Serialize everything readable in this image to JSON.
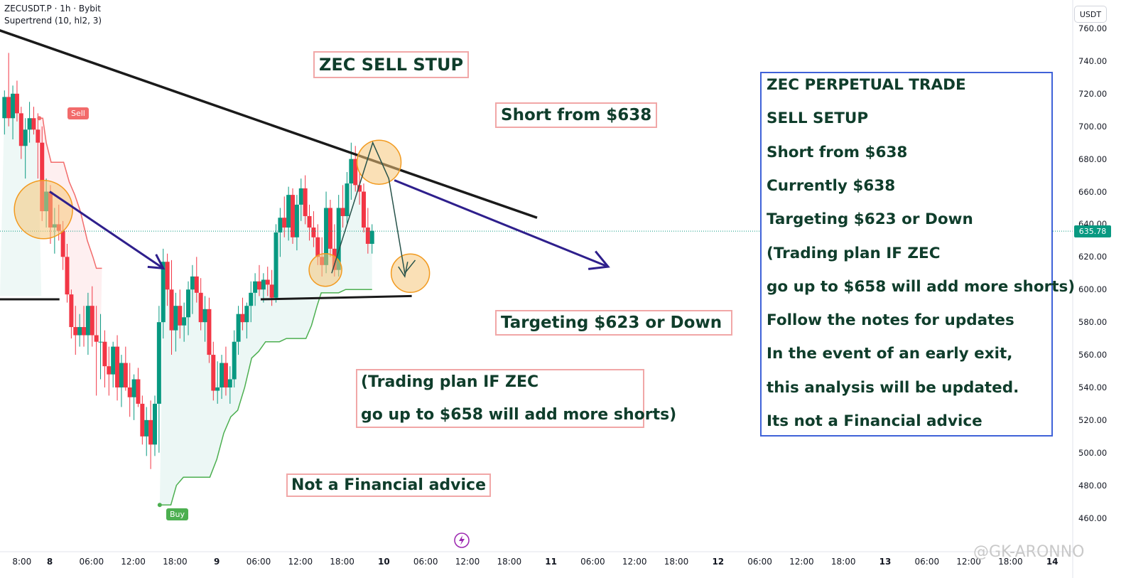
{
  "header": {
    "symbol_line": "ZECUSDT.P · 1h · Bybit",
    "indicator": "Supertrend (10, hl2, 3)"
  },
  "currency_button": "USDT",
  "current_price": "635.78",
  "colors": {
    "up": "#089981",
    "down": "#f23645",
    "supertrend_down": "#f26b6b",
    "supertrend_up": "#4caf50",
    "trendline": "#1a1a1a",
    "arrow": "#2e1f8c",
    "circle_fill": "#f5c67a",
    "circle_stroke": "#f29a1f",
    "notes_border": "#3f62d8",
    "label_border": "#f1a7a7",
    "label_text": "#0f3d2b"
  },
  "annotations": {
    "setup_title": "ZEC SELL STUP",
    "short_from": "Short from $638",
    "targeting": "Targeting $623 or Down",
    "plan_line1": "(Trading plan IF ZEC",
    "plan_line2": "go up to $658 will add more shorts)",
    "not_advice": "Not a Financial advice",
    "sell_tag": "Sell",
    "buy_tag": "Buy"
  },
  "notes_box": {
    "lines": [
      "ZEC PERPETUAL TRADE",
      "SELL SETUP",
      "Short from $638",
      "Currently $638",
      "Targeting $623 or Down",
      "(Trading plan IF ZEC",
      "go up to $658 will add more shorts)",
      "Follow the notes for updates",
      "In the event of an early exit,",
      "this analysis will be updated.",
      "Its not a Financial advice"
    ]
  },
  "watermark": "@GK-ARONNO",
  "chart_data": {
    "type": "candlestick",
    "title": "ZECUSDT.P · 1h · Bybit",
    "ylim": [
      450,
      765
    ],
    "y_ticks": [
      "760.00",
      "740.00",
      "720.00",
      "700.00",
      "680.00",
      "660.00",
      "640.00",
      "620.00",
      "600.00",
      "580.00",
      "560.00",
      "540.00",
      "520.00",
      "500.00",
      "480.00",
      "460.00"
    ],
    "x_ticks": [
      "8:00",
      "8",
      "06:00",
      "12:00",
      "18:00",
      "9",
      "06:00",
      "12:00",
      "18:00",
      "10",
      "06:00",
      "12:00",
      "18:00",
      "11",
      "06:00",
      "12:00",
      "18:00",
      "12",
      "06:00",
      "12:00",
      "18:00",
      "13",
      "06:00",
      "12:00",
      "18:00",
      "14"
    ],
    "x_tick_values": [
      -4,
      0,
      6,
      12,
      18,
      24,
      30,
      36,
      42,
      48,
      54,
      60,
      66,
      72,
      78,
      84,
      90,
      96,
      102,
      108,
      114,
      120,
      126,
      132,
      138,
      144
    ],
    "candles": [
      {
        "t": -6.5,
        "o": 705,
        "h": 722,
        "l": 695,
        "c": 718
      },
      {
        "t": -5.9,
        "o": 718,
        "h": 745,
        "l": 700,
        "c": 705
      },
      {
        "t": -5.3,
        "o": 705,
        "h": 725,
        "l": 692,
        "c": 720
      },
      {
        "t": -4.7,
        "o": 720,
        "h": 728,
        "l": 703,
        "c": 708
      },
      {
        "t": -4.1,
        "o": 708,
        "h": 712,
        "l": 680,
        "c": 688
      },
      {
        "t": -3.5,
        "o": 688,
        "h": 705,
        "l": 668,
        "c": 698
      },
      {
        "t": -2.9,
        "o": 698,
        "h": 715,
        "l": 690,
        "c": 705
      },
      {
        "t": -2.3,
        "o": 705,
        "h": 712,
        "l": 695,
        "c": 698
      },
      {
        "t": -1.7,
        "o": 698,
        "h": 708,
        "l": 668,
        "c": 690
      },
      {
        "t": -1.1,
        "o": 690,
        "h": 700,
        "l": 642,
        "c": 648
      },
      {
        "t": -0.5,
        "o": 648,
        "h": 668,
        "l": 638,
        "c": 660
      },
      {
        "t": 0.1,
        "o": 660,
        "h": 664,
        "l": 628,
        "c": 638
      },
      {
        "t": 0.7,
        "o": 638,
        "h": 650,
        "l": 622,
        "c": 640
      },
      {
        "t": 1.3,
        "o": 640,
        "h": 652,
        "l": 630,
        "c": 636
      },
      {
        "t": 1.9,
        "o": 636,
        "h": 642,
        "l": 612,
        "c": 620
      },
      {
        "t": 2.5,
        "o": 620,
        "h": 628,
        "l": 592,
        "c": 597
      },
      {
        "t": 3.1,
        "o": 597,
        "h": 600,
        "l": 570,
        "c": 577
      },
      {
        "t": 3.7,
        "o": 577,
        "h": 590,
        "l": 560,
        "c": 572
      },
      {
        "t": 4.3,
        "o": 572,
        "h": 585,
        "l": 565,
        "c": 577
      },
      {
        "t": 4.9,
        "o": 577,
        "h": 590,
        "l": 565,
        "c": 572
      },
      {
        "t": 5.5,
        "o": 572,
        "h": 598,
        "l": 560,
        "c": 590
      },
      {
        "t": 6.1,
        "o": 590,
        "h": 602,
        "l": 565,
        "c": 572
      },
      {
        "t": 6.7,
        "o": 572,
        "h": 590,
        "l": 535,
        "c": 568
      },
      {
        "t": 7.3,
        "o": 568,
        "h": 585,
        "l": 545,
        "c": 568
      },
      {
        "t": 7.9,
        "o": 568,
        "h": 575,
        "l": 540,
        "c": 553
      },
      {
        "t": 8.5,
        "o": 553,
        "h": 565,
        "l": 535,
        "c": 548
      },
      {
        "t": 9.1,
        "o": 548,
        "h": 568,
        "l": 540,
        "c": 565
      },
      {
        "t": 9.7,
        "o": 565,
        "h": 572,
        "l": 532,
        "c": 540
      },
      {
        "t": 10.3,
        "o": 540,
        "h": 560,
        "l": 528,
        "c": 555
      },
      {
        "t": 10.9,
        "o": 555,
        "h": 565,
        "l": 538,
        "c": 540
      },
      {
        "t": 11.5,
        "o": 540,
        "h": 555,
        "l": 522,
        "c": 534
      },
      {
        "t": 12.1,
        "o": 534,
        "h": 548,
        "l": 520,
        "c": 545
      },
      {
        "t": 12.7,
        "o": 545,
        "h": 552,
        "l": 528,
        "c": 530
      },
      {
        "t": 13.3,
        "o": 530,
        "h": 535,
        "l": 505,
        "c": 510
      },
      {
        "t": 13.9,
        "o": 510,
        "h": 528,
        "l": 498,
        "c": 520
      },
      {
        "t": 14.5,
        "o": 520,
        "h": 532,
        "l": 490,
        "c": 505
      },
      {
        "t": 15.1,
        "o": 505,
        "h": 535,
        "l": 498,
        "c": 530
      },
      {
        "t": 15.7,
        "o": 530,
        "h": 590,
        "l": 500,
        "c": 580
      },
      {
        "t": 16.3,
        "o": 580,
        "h": 625,
        "l": 570,
        "c": 617
      },
      {
        "t": 16.9,
        "o": 617,
        "h": 622,
        "l": 590,
        "c": 600
      },
      {
        "t": 17.5,
        "o": 600,
        "h": 618,
        "l": 560,
        "c": 575
      },
      {
        "t": 18.1,
        "o": 575,
        "h": 598,
        "l": 562,
        "c": 590
      },
      {
        "t": 18.7,
        "o": 590,
        "h": 600,
        "l": 570,
        "c": 578
      },
      {
        "t": 19.3,
        "o": 578,
        "h": 592,
        "l": 568,
        "c": 583
      },
      {
        "t": 19.9,
        "o": 583,
        "h": 605,
        "l": 572,
        "c": 600
      },
      {
        "t": 20.5,
        "o": 600,
        "h": 615,
        "l": 585,
        "c": 608
      },
      {
        "t": 21.1,
        "o": 608,
        "h": 620,
        "l": 592,
        "c": 598
      },
      {
        "t": 21.7,
        "o": 598,
        "h": 607,
        "l": 575,
        "c": 580
      },
      {
        "t": 22.3,
        "o": 580,
        "h": 596,
        "l": 568,
        "c": 588
      },
      {
        "t": 22.9,
        "o": 588,
        "h": 595,
        "l": 555,
        "c": 560
      },
      {
        "t": 23.5,
        "o": 560,
        "h": 568,
        "l": 532,
        "c": 538
      },
      {
        "t": 24.1,
        "o": 538,
        "h": 556,
        "l": 530,
        "c": 540
      },
      {
        "t": 24.7,
        "o": 540,
        "h": 560,
        "l": 533,
        "c": 555
      },
      {
        "t": 25.3,
        "o": 555,
        "h": 565,
        "l": 535,
        "c": 540
      },
      {
        "t": 25.9,
        "o": 540,
        "h": 553,
        "l": 530,
        "c": 545
      },
      {
        "t": 26.5,
        "o": 545,
        "h": 575,
        "l": 540,
        "c": 568
      },
      {
        "t": 27.1,
        "o": 568,
        "h": 590,
        "l": 560,
        "c": 585
      },
      {
        "t": 27.7,
        "o": 585,
        "h": 595,
        "l": 575,
        "c": 580
      },
      {
        "t": 28.3,
        "o": 580,
        "h": 592,
        "l": 570,
        "c": 590
      },
      {
        "t": 28.9,
        "o": 590,
        "h": 605,
        "l": 580,
        "c": 598
      },
      {
        "t": 29.5,
        "o": 598,
        "h": 610,
        "l": 590,
        "c": 605
      },
      {
        "t": 30.1,
        "o": 605,
        "h": 615,
        "l": 596,
        "c": 600
      },
      {
        "t": 30.7,
        "o": 600,
        "h": 610,
        "l": 592,
        "c": 606
      },
      {
        "t": 31.3,
        "o": 606,
        "h": 614,
        "l": 596,
        "c": 603
      },
      {
        "t": 31.9,
        "o": 603,
        "h": 612,
        "l": 590,
        "c": 595
      },
      {
        "t": 32.5,
        "o": 595,
        "h": 640,
        "l": 592,
        "c": 635
      },
      {
        "t": 33.1,
        "o": 635,
        "h": 650,
        "l": 620,
        "c": 644
      },
      {
        "t": 33.7,
        "o": 644,
        "h": 657,
        "l": 632,
        "c": 638
      },
      {
        "t": 34.3,
        "o": 638,
        "h": 663,
        "l": 630,
        "c": 658
      },
      {
        "t": 34.9,
        "o": 658,
        "h": 662,
        "l": 628,
        "c": 632
      },
      {
        "t": 35.5,
        "o": 632,
        "h": 658,
        "l": 624,
        "c": 652
      },
      {
        "t": 36.1,
        "o": 652,
        "h": 668,
        "l": 642,
        "c": 662
      },
      {
        "t": 36.7,
        "o": 662,
        "h": 670,
        "l": 640,
        "c": 645
      },
      {
        "t": 37.3,
        "o": 645,
        "h": 652,
        "l": 630,
        "c": 638
      },
      {
        "t": 37.9,
        "o": 638,
        "h": 648,
        "l": 626,
        "c": 632
      },
      {
        "t": 38.5,
        "o": 632,
        "h": 640,
        "l": 615,
        "c": 620
      },
      {
        "t": 39.1,
        "o": 620,
        "h": 632,
        "l": 608,
        "c": 615
      },
      {
        "t": 39.7,
        "o": 615,
        "h": 660,
        "l": 610,
        "c": 650
      },
      {
        "t": 40.3,
        "o": 650,
        "h": 655,
        "l": 620,
        "c": 625
      },
      {
        "t": 40.9,
        "o": 625,
        "h": 640,
        "l": 608,
        "c": 612
      },
      {
        "t": 41.5,
        "o": 612,
        "h": 658,
        "l": 608,
        "c": 650
      },
      {
        "t": 42.1,
        "o": 650,
        "h": 664,
        "l": 638,
        "c": 645
      },
      {
        "t": 42.7,
        "o": 645,
        "h": 672,
        "l": 640,
        "c": 665
      },
      {
        "t": 43.3,
        "o": 665,
        "h": 690,
        "l": 655,
        "c": 680
      },
      {
        "t": 43.9,
        "o": 680,
        "h": 688,
        "l": 660,
        "c": 664
      },
      {
        "t": 44.5,
        "o": 664,
        "h": 672,
        "l": 652,
        "c": 660
      },
      {
        "t": 45.1,
        "o": 660,
        "h": 665,
        "l": 635,
        "c": 638
      },
      {
        "t": 45.7,
        "o": 638,
        "h": 650,
        "l": 622,
        "c": 628
      },
      {
        "t": 46.3,
        "o": 628,
        "h": 640,
        "l": 622,
        "c": 636
      }
    ],
    "supertrend": {
      "down_segment": [
        [
          -1.5,
          705
        ],
        [
          -1.0,
          705
        ],
        [
          -0.5,
          690
        ],
        [
          0.2,
          678
        ],
        [
          1.0,
          678
        ],
        [
          2.0,
          678
        ],
        [
          2.8,
          666
        ],
        [
          3.6,
          658
        ],
        [
          4.4,
          648
        ],
        [
          5.4,
          630
        ],
        [
          6.2,
          620
        ],
        [
          6.7,
          613
        ],
        [
          7.5,
          613
        ]
      ],
      "up_segment": [
        [
          15.8,
          468
        ],
        [
          16.5,
          468
        ],
        [
          17.4,
          468
        ],
        [
          18.2,
          480
        ],
        [
          19.2,
          485
        ],
        [
          21.0,
          485
        ],
        [
          22.0,
          485
        ],
        [
          23.0,
          485
        ],
        [
          24.0,
          496
        ],
        [
          25.0,
          512
        ],
        [
          26.0,
          522
        ],
        [
          27.0,
          526
        ],
        [
          28.0,
          540
        ],
        [
          29.0,
          558
        ],
        [
          30.0,
          562
        ],
        [
          31.0,
          568
        ],
        [
          32.0,
          568
        ],
        [
          33.0,
          568
        ],
        [
          34.0,
          570
        ],
        [
          35.0,
          570
        ],
        [
          36.0,
          570
        ],
        [
          36.8,
          570
        ],
        [
          37.6,
          578
        ],
        [
          38.4,
          590
        ],
        [
          39.0,
          598
        ],
        [
          40.0,
          598
        ],
        [
          41.5,
          598
        ],
        [
          42.5,
          600
        ],
        [
          43.4,
          600
        ],
        [
          44.0,
          600
        ],
        [
          45.0,
          600
        ],
        [
          46.3,
          600
        ]
      ]
    },
    "trendline": [
      [
        -10,
        763
      ],
      [
        70,
        644
      ]
    ],
    "support_left": [
      [
        -10,
        594
      ],
      [
        1.4,
        594
      ]
    ],
    "support_right": [
      [
        30.3,
        594
      ],
      [
        52,
        596
      ]
    ]
  }
}
